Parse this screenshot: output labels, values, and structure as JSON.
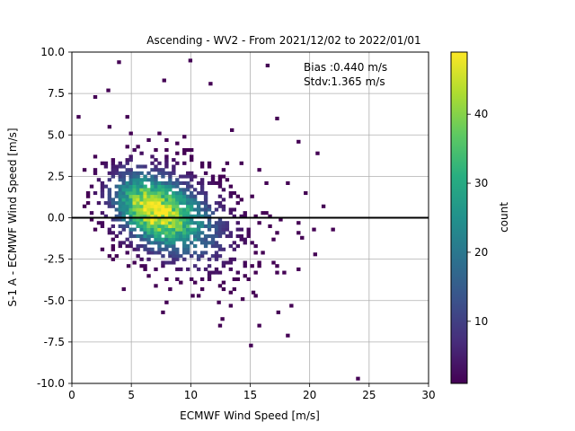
{
  "chart_data": {
    "type": "heatmap",
    "title": "Ascending - WV2 - From 2021/12/02 to 2022/01/01",
    "xlabel": "ECMWF Wind Speed [m/s]",
    "ylabel": "S-1 A - ECMWF Wind Speed [m/s]",
    "xlim": [
      0,
      30
    ],
    "ylim": [
      -10,
      10
    ],
    "xticks": [
      0,
      5,
      10,
      15,
      20,
      25,
      30
    ],
    "yticks": [
      -10.0,
      -7.5,
      -5.0,
      -2.5,
      0.0,
      2.5,
      5.0,
      7.5,
      10.0
    ],
    "grid": true,
    "reference_line_y": 0,
    "annotations": [
      "Bias :0.440 m/s",
      "Stdv:1.365 m/s"
    ],
    "colorbar": {
      "label": "count",
      "range": [
        1,
        49
      ],
      "ticks": [
        10,
        20,
        30,
        40
      ],
      "colormap": "viridis"
    },
    "density_model": {
      "description": "2D histogram of counts; dense core near x≈6.5, y≈0.4",
      "peak_count": 48,
      "core_center": [
        6.5,
        0.4
      ],
      "x_extent": [
        0.5,
        24
      ],
      "y_extent": [
        -9.8,
        9.4
      ]
    },
    "outliers": [
      [
        3.8,
        9.3
      ],
      [
        9.8,
        9.4
      ],
      [
        16.3,
        9.1
      ],
      [
        7.6,
        8.2
      ],
      [
        11.5,
        8.0
      ],
      [
        13.3,
        5.2
      ],
      [
        17.1,
        5.9
      ],
      [
        18.9,
        4.5
      ],
      [
        2.9,
        7.6
      ],
      [
        1.8,
        7.2
      ],
      [
        20.5,
        3.8
      ],
      [
        19.5,
        1.4
      ],
      [
        21.0,
        0.6
      ],
      [
        21.8,
        -0.8
      ],
      [
        20.2,
        -0.8
      ],
      [
        20.3,
        -2.3
      ],
      [
        19.2,
        -1.3
      ],
      [
        15.1,
        -4.6
      ],
      [
        14.2,
        -5.0
      ],
      [
        12.2,
        -5.2
      ],
      [
        12.5,
        -6.2
      ],
      [
        10.0,
        -4.8
      ],
      [
        17.2,
        -5.8
      ],
      [
        14.9,
        -7.8
      ],
      [
        23.9,
        -9.8
      ],
      [
        3.0,
        -2.4
      ],
      [
        4.6,
        -3.0
      ],
      [
        6.3,
        -3.6
      ],
      [
        8.1,
        -4.4
      ],
      [
        0.4,
        6.0
      ]
    ]
  }
}
